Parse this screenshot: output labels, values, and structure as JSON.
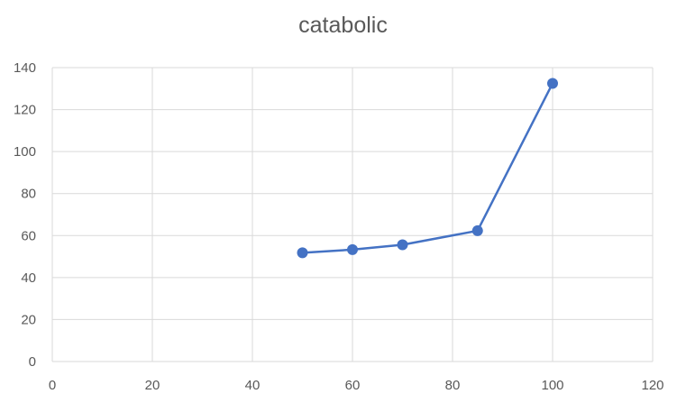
{
  "chart_data": {
    "type": "scatter",
    "title": "catabolic",
    "xlabel": "",
    "ylabel": "",
    "xlim": [
      0,
      120
    ],
    "ylim": [
      0,
      140
    ],
    "x_ticks": [
      0,
      20,
      40,
      60,
      80,
      100,
      120
    ],
    "y_ticks": [
      0,
      20,
      40,
      60,
      80,
      100,
      120,
      140
    ],
    "grid": true,
    "legend": "none",
    "series": [
      {
        "x": [
          50,
          60,
          70,
          85,
          100
        ],
        "y": [
          51.8,
          53.3,
          55.6,
          62.3,
          132.5
        ],
        "color": "#4472c4",
        "marker": "circle",
        "line": true
      }
    ]
  }
}
